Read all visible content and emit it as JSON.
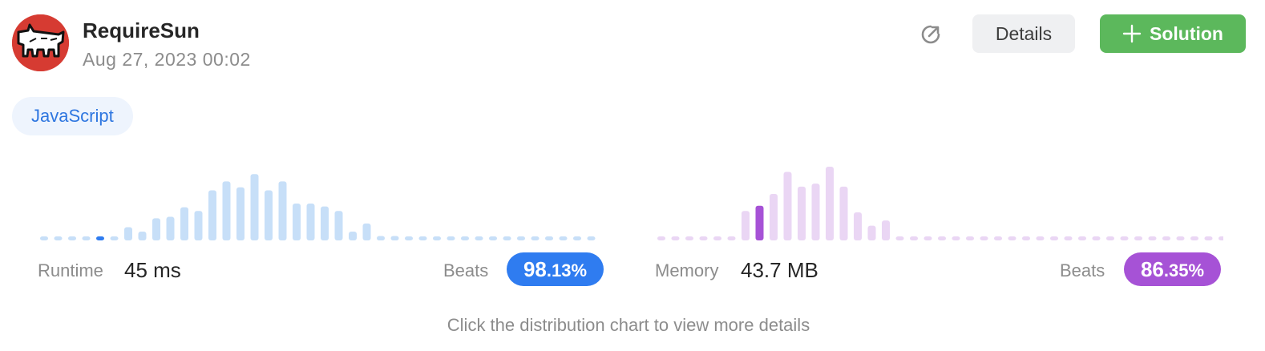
{
  "user": {
    "name": "RequireSun",
    "timestamp": "Aug 27, 2023 00:02",
    "avatar_icon": "keith-haring-dog-avatar"
  },
  "actions": {
    "share_icon": "share-arrow-icon",
    "details_label": "Details",
    "solution_label": "Solution"
  },
  "language": "JavaScript",
  "runtime": {
    "label": "Runtime",
    "value": "45 ms",
    "beats_label": "Beats",
    "beats_int": "98",
    "beats_frac": ".13%"
  },
  "memory": {
    "label": "Memory",
    "value": "43.7 MB",
    "beats_label": "Beats",
    "beats_int": "86",
    "beats_frac": ".35%"
  },
  "hint": "Click the distribution chart to view more details",
  "colors": {
    "runtime_bar": "#c7dff8",
    "runtime_highlight": "#2f7cf0",
    "memory_bar": "#ead6f4",
    "memory_highlight": "#a652d6"
  },
  "chart_data": [
    {
      "type": "bar",
      "title": "",
      "values": [
        0.05,
        0.05,
        0.05,
        0.05,
        0.05,
        0.05,
        0.18,
        0.12,
        0.3,
        0.32,
        0.45,
        0.4,
        0.68,
        0.8,
        0.72,
        0.9,
        0.68,
        0.8,
        0.5,
        0.5,
        0.46,
        0.4,
        0.12,
        0.23,
        0.06,
        0.06,
        0.05,
        0.05,
        0.05,
        0.05,
        0.05,
        0.05,
        0.05,
        0.05,
        0.05,
        0.05,
        0.05,
        0.05,
        0.05,
        0.05
      ],
      "highlight_index": 4
    },
    {
      "type": "bar",
      "title": "",
      "values": [
        0.05,
        0.05,
        0.05,
        0.05,
        0.05,
        0.05,
        0.4,
        0.47,
        0.63,
        0.93,
        0.73,
        0.77,
        1.0,
        0.73,
        0.38,
        0.2,
        0.27,
        0.05,
        0.05,
        0.05,
        0.05,
        0.05,
        0.05,
        0.05,
        0.05,
        0.05,
        0.05,
        0.05,
        0.05,
        0.05,
        0.05,
        0.05,
        0.05,
        0.05,
        0.05,
        0.05,
        0.05,
        0.05,
        0.05,
        0.05,
        0.05
      ],
      "highlight_index": 7
    }
  ]
}
